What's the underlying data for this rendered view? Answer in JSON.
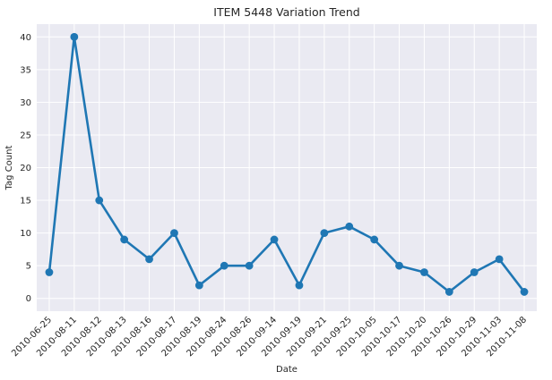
{
  "chart_data": {
    "type": "line",
    "title": "ITEM 5448 Variation Trend",
    "xlabel": "Date",
    "ylabel": "Tag Count",
    "categories": [
      "2010-06-25",
      "2010-08-11",
      "2010-08-12",
      "2010-08-13",
      "2010-08-16",
      "2010-08-17",
      "2010-08-19",
      "2010-08-24",
      "2010-08-26",
      "2010-09-14",
      "2010-09-19",
      "2010-09-21",
      "2010-09-25",
      "2010-10-05",
      "2010-10-17",
      "2010-10-20",
      "2010-10-26",
      "2010-10-29",
      "2010-11-03",
      "2010-11-08"
    ],
    "values": [
      4,
      40,
      15,
      9,
      6,
      10,
      2,
      5,
      5,
      9,
      2,
      10,
      11,
      9,
      5,
      4,
      1,
      4,
      6,
      1
    ],
    "yticks": [
      0,
      5,
      10,
      15,
      20,
      25,
      30,
      35,
      40
    ],
    "ylim": [
      -1.95,
      41.95
    ],
    "grid": true,
    "legend": "none",
    "colors": {
      "line": "#1f77b4",
      "plot_bg": "#eaeaf2",
      "grid": "#ffffff",
      "text": "#262626"
    }
  }
}
